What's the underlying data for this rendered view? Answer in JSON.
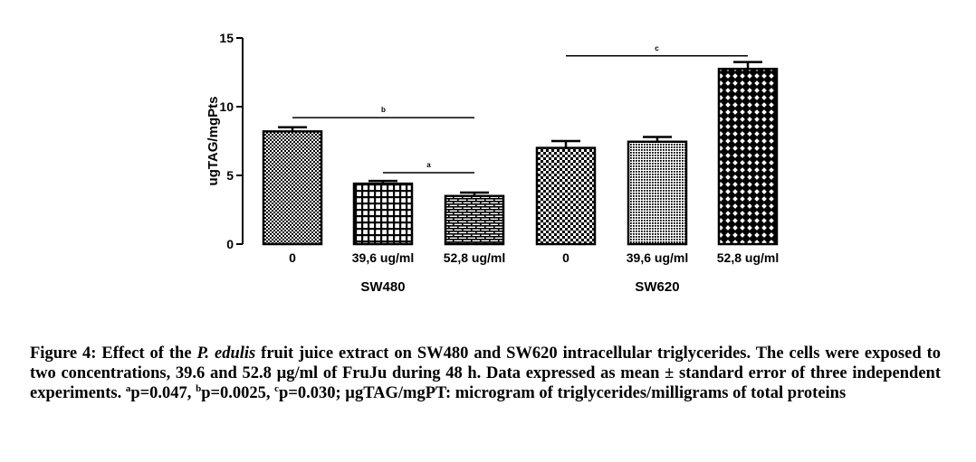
{
  "chart_data": {
    "type": "bar",
    "ylabel": "ugTAG/mgPts",
    "ylim": [
      0,
      15
    ],
    "yticks": [
      "0",
      "5",
      "10",
      "15"
    ],
    "groups": [
      {
        "name": "SW480",
        "categories": [
          "0",
          "39,6 ug/ml",
          "52,8 ug/ml"
        ],
        "values": [
          8.2,
          4.4,
          3.5
        ],
        "errors": [
          0.3,
          0.2,
          0.25
        ],
        "patterns": [
          "fine-check",
          "grid",
          "brick"
        ]
      },
      {
        "name": "SW620",
        "categories": [
          "0",
          "39,6 ug/ml",
          "52,8 ug/ml"
        ],
        "values": [
          7.0,
          7.45,
          12.75
        ],
        "errors": [
          0.5,
          0.35,
          0.5
        ],
        "patterns": [
          "checker",
          "dense-dots",
          "lattice"
        ]
      }
    ],
    "significance": [
      {
        "label": "b",
        "from": [
          0,
          0
        ],
        "to": [
          0,
          2
        ],
        "y": 9.2
      },
      {
        "label": "a",
        "from": [
          0,
          1
        ],
        "to": [
          0,
          2
        ],
        "y": 5.2
      },
      {
        "label": "c",
        "from": [
          1,
          0
        ],
        "to": [
          1,
          2
        ],
        "y": 13.7
      }
    ]
  },
  "caption": {
    "figure_label": "Figure 4:",
    "text_1": " Effect of the ",
    "species": "P. edulis",
    "text_2": " fruit juice extract on SW480 and SW620 intracellular triglycerides. The cells were exposed to two concentrations, 39.6 and 52.8 µg/ml of FruJu during 48 h. Data expressed as mean ± standard error of three independent experiments. ",
    "sup_a": "a",
    "p_a": "p=0.047, ",
    "sup_b": "b",
    "p_b": "p=0.0025, ",
    "sup_c": "c",
    "p_c": "p=0.030; µgTAG/mgPT: microgram of triglycerides/milligrams of total proteins"
  }
}
